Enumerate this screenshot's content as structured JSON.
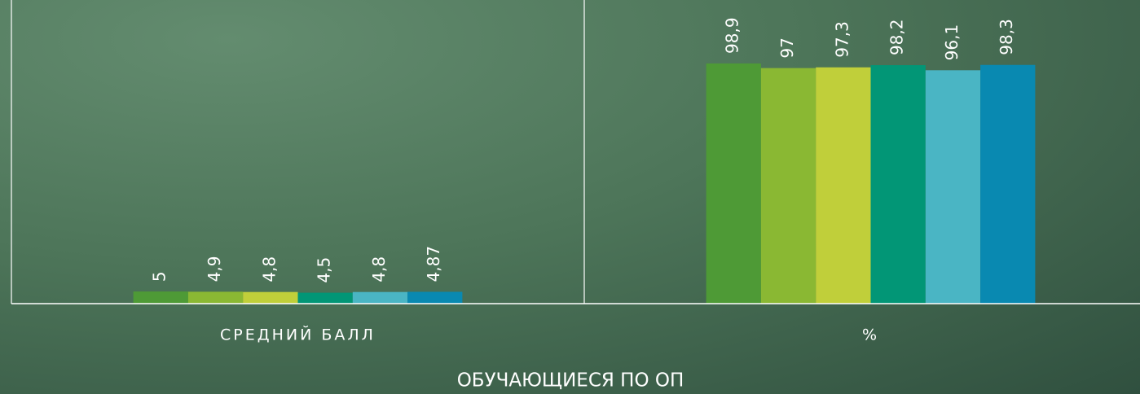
{
  "chart_data": {
    "type": "bar",
    "x_label": "ОБУЧАЮЩИЕСЯ ПО ОП",
    "categories": [
      "СРЕДНИЙ БАЛЛ",
      "%"
    ],
    "ylim": [
      0,
      120
    ],
    "series": [
      {
        "color": "#4e9a36",
        "values": [
          5,
          98.9
        ],
        "value_labels": [
          "5",
          "98,9"
        ]
      },
      {
        "color": "#8ab833",
        "values": [
          4.9,
          97
        ],
        "value_labels": [
          "4,9",
          "97"
        ]
      },
      {
        "color": "#c0cf3a",
        "values": [
          4.8,
          97.3
        ],
        "value_labels": [
          "4,8",
          "97,3"
        ]
      },
      {
        "color": "#029676",
        "values": [
          4.5,
          98.2
        ],
        "value_labels": [
          "4,5",
          "98,2"
        ]
      },
      {
        "color": "#4ab5c4",
        "values": [
          4.8,
          96.1
        ],
        "value_labels": [
          "4,8",
          "96,1"
        ]
      },
      {
        "color": "#0989b1",
        "values": [
          4.87,
          98.3
        ],
        "value_labels": [
          "4,87",
          "98,3"
        ]
      }
    ]
  }
}
